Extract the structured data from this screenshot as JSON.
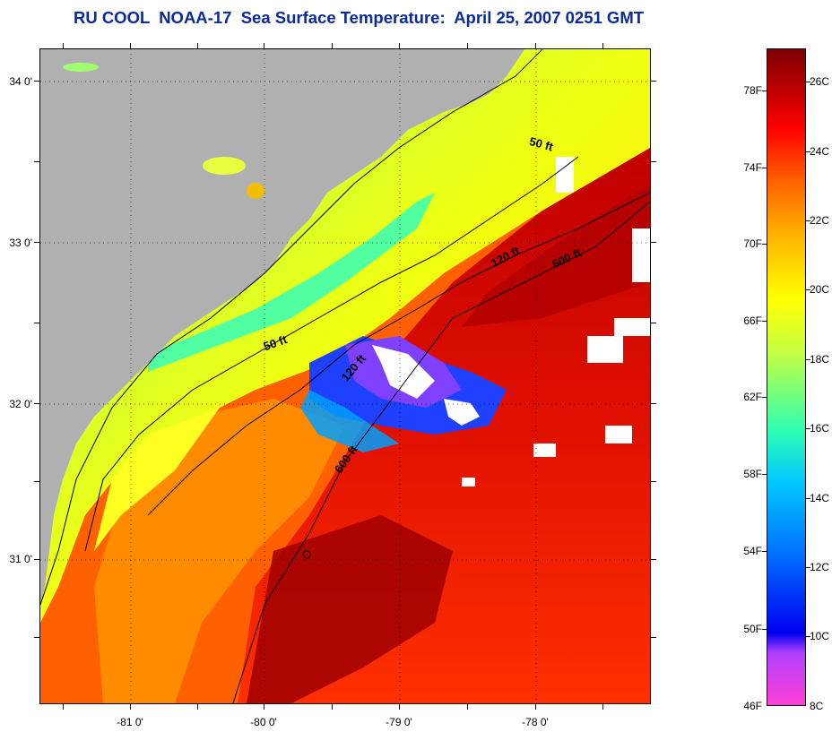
{
  "title": "RU COOL  NOAA-17  Sea Surface Temperature:  April 25, 2007 0251 GMT",
  "map": {
    "latitude_labels": [
      "34 0'",
      "33 0'",
      "32 0'",
      "31 0'"
    ],
    "longitude_labels": [
      "-81 0'",
      "-80 0'",
      "-79 0'",
      "-78 0'"
    ],
    "contour_labels": [
      {
        "name": "contour-50ft-north",
        "text": "50 ft"
      },
      {
        "name": "contour-120ft-north",
        "text": "120 ft"
      },
      {
        "name": "contour-600ft-north",
        "text": "600 ft"
      },
      {
        "name": "contour-50ft-south",
        "text": "50 ft"
      },
      {
        "name": "contour-120ft-south",
        "text": "120 ft"
      },
      {
        "name": "contour-600ft-south",
        "text": "600 ft"
      }
    ],
    "colors": {
      "land": "#b0b0b0",
      "warm": "#d80000",
      "cool": "#ffff00",
      "cold": "#0000ff",
      "cloud": "#ffffff"
    }
  },
  "colorbar": {
    "fahrenheit_labels": [
      "78F",
      "74F",
      "70F",
      "66F",
      "62F",
      "58F",
      "54F",
      "50F",
      "46F"
    ],
    "celsius_labels": [
      "26C",
      "24C",
      "22C",
      "20C",
      "18C",
      "16C",
      "14C",
      "12C",
      "10C",
      "8C"
    ]
  }
}
